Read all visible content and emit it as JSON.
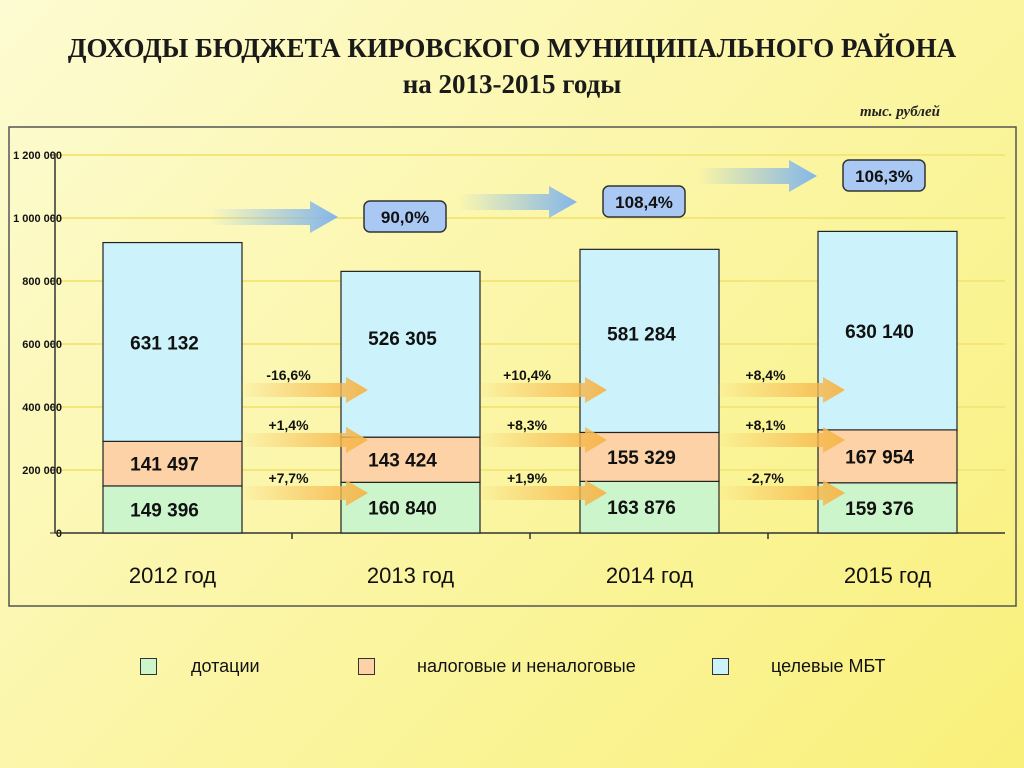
{
  "title": {
    "line1": "ДОХОДЫ БЮДЖЕТА КИРОВСКОГО МУНИЦИПАЛЬНОГО РАЙОНА",
    "line2": "на 2013-2015 годы"
  },
  "unit_label": "тыс. рублей",
  "colors": {
    "dotacii": "#ccf5cc",
    "nalogovye": "#fcd2a6",
    "celevye": "#ccf3fb",
    "badge": "#a9c9f4",
    "arrow_orange": "#f6b74d",
    "arrow_blue": "#84b6ea"
  },
  "legend": [
    {
      "label": "дотации",
      "color": "#ccf5cc"
    },
    {
      "label": "налоговые и неналоговые",
      "color": "#fcd2a6"
    },
    {
      "label": "целевые МБТ",
      "color": "#ccf3fb"
    }
  ],
  "chart_data": {
    "type": "bar",
    "stacked": true,
    "categories": [
      "2012 год",
      "2013 год",
      "2014 год",
      "2015 год"
    ],
    "series": [
      {
        "name": "дотации",
        "values": [
          149396,
          160840,
          163876,
          159376
        ],
        "labels": [
          "149 396",
          "160 840",
          "163 876",
          "159 376"
        ]
      },
      {
        "name": "налоговые и неналоговые",
        "values": [
          141497,
          143424,
          155329,
          167954
        ],
        "labels": [
          "141 497",
          "143 424",
          "155 329",
          "167 954"
        ]
      },
      {
        "name": "целевые МБТ",
        "values": [
          631132,
          526305,
          581284,
          630140
        ],
        "labels": [
          "631 132",
          "526 305",
          "581 284",
          "630 140"
        ]
      }
    ],
    "ylim": [
      0,
      1200000
    ],
    "yticks": [
      0,
      200000,
      400000,
      600000,
      800000,
      1000000,
      1200000
    ],
    "ytick_labels": [
      "0",
      "200 000",
      "400 000",
      "600 000",
      "800 000",
      "1 000 000",
      "1 200 000"
    ],
    "grid": true,
    "growth_badges": [
      "90,0%",
      "108,4%",
      "106,3%"
    ],
    "change_annotations": [
      {
        "celevye": "-16,6%",
        "nalogovye": "+1,4%",
        "dotacii": "+7,7%"
      },
      {
        "celevye": "+10,4%",
        "nalogovye": "+8,3%",
        "dotacii": "+1,9%"
      },
      {
        "celevye": "+8,4%",
        "nalogovye": "+8,1%",
        "dotacii": "-2,7%"
      }
    ]
  }
}
